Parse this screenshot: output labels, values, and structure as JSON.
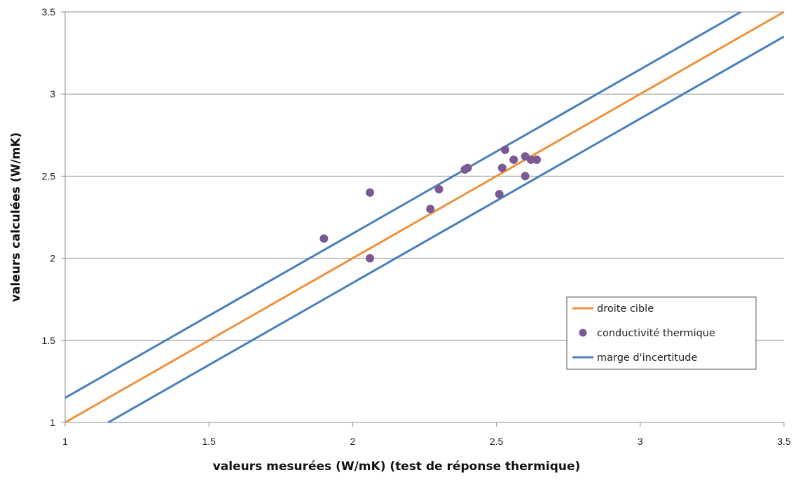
{
  "chart_data": {
    "type": "scatter",
    "xlabel": "valeurs mesurées  (W/mK) (test de réponse thermique)",
    "ylabel": "valeurs calculées  (W/mK)",
    "xlim": [
      1,
      3.5
    ],
    "ylim": [
      1,
      3.5
    ],
    "x_ticks": [
      "1",
      "1.5",
      "2",
      "2.5",
      "3",
      "3.5"
    ],
    "y_ticks": [
      "1",
      "1.5",
      "2",
      "2.5",
      "3",
      "3.5"
    ],
    "grid": "horizontal",
    "legend_position": "bottom-right",
    "series": [
      {
        "name": "droite cible",
        "kind": "line",
        "color": "#F0923D",
        "x": [
          1,
          3.5
        ],
        "y": [
          1,
          3.5
        ]
      },
      {
        "name": "conductivité thermique",
        "kind": "scatter",
        "color": "#7B5A94",
        "x": [
          1.9,
          2.06,
          2.06,
          2.27,
          2.3,
          2.39,
          2.4,
          2.51,
          2.52,
          2.53,
          2.56,
          2.6,
          2.6,
          2.62,
          2.64
        ],
        "y": [
          2.12,
          2.4,
          2.0,
          2.3,
          2.42,
          2.54,
          2.55,
          2.39,
          2.55,
          2.66,
          2.6,
          2.62,
          2.5,
          2.6,
          2.6
        ]
      },
      {
        "name": "marge d'incertitude",
        "kind": "line",
        "color": "#4A7EBB",
        "x": [
          1,
          3.5
        ],
        "y": [
          1.15,
          3.65
        ]
      },
      {
        "name": "",
        "kind": "line",
        "color": "#4A7EBB",
        "x": [
          1,
          3.5
        ],
        "y": [
          0.85,
          3.35
        ]
      }
    ]
  }
}
